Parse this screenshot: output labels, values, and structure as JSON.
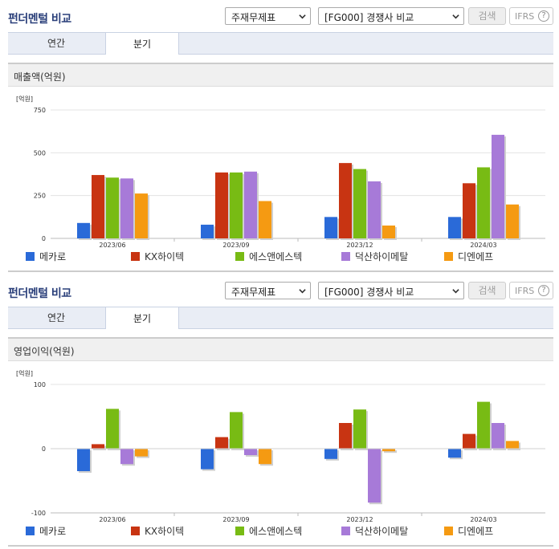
{
  "header": {
    "title": "펀더멘털 비교",
    "select_statement": "주재무제표",
    "select_compare": "[FG000] 경쟁사 비교",
    "search_label": "검색",
    "ifrs_label": "IFRS",
    "ifrs_help": "?"
  },
  "tabs": [
    "연간",
    "분기"
  ],
  "colors": {
    "series": [
      "#2a6ad8",
      "#c83412",
      "#78bb14",
      "#a77ad8",
      "#f59a12"
    ],
    "title": "#2a3f7a"
  },
  "chart_data": [
    {
      "type": "bar",
      "title": "매출액(억원)",
      "unit": "[억원]",
      "categories": [
        "2023/06",
        "2023/09",
        "2023/12",
        "2024/03"
      ],
      "ylim": [
        0,
        750
      ],
      "yticks": [
        0,
        250,
        500,
        750
      ],
      "grid": true,
      "legend_position": "bottom",
      "series": [
        {
          "name": "메카로",
          "values": [
            90,
            80,
            125,
            125
          ]
        },
        {
          "name": "KX하이텍",
          "values": [
            370,
            385,
            440,
            322
          ]
        },
        {
          "name": "에스앤에스텍",
          "values": [
            355,
            385,
            405,
            415
          ]
        },
        {
          "name": "덕산하이메탈",
          "values": [
            350,
            390,
            333,
            605
          ]
        },
        {
          "name": "디엔에프",
          "values": [
            262,
            218,
            75,
            198
          ]
        }
      ]
    },
    {
      "type": "bar",
      "title": "영업이익(억원)",
      "unit": "[억원]",
      "categories": [
        "2023/06",
        "2023/09",
        "2023/12",
        "2024/03"
      ],
      "ylim": [
        -100,
        100
      ],
      "yticks": [
        -100,
        0,
        100
      ],
      "grid": true,
      "legend_position": "bottom",
      "series": [
        {
          "name": "메카로",
          "values": [
            -35,
            -32,
            -16,
            -14
          ]
        },
        {
          "name": "KX하이텍",
          "values": [
            7,
            18,
            40,
            23
          ]
        },
        {
          "name": "에스앤에스텍",
          "values": [
            62,
            57,
            61,
            73
          ]
        },
        {
          "name": "덕산하이메탈",
          "values": [
            -24,
            -10,
            -84,
            40
          ]
        },
        {
          "name": "디엔에프",
          "values": [
            -12,
            -24,
            -4,
            12
          ]
        }
      ]
    }
  ]
}
